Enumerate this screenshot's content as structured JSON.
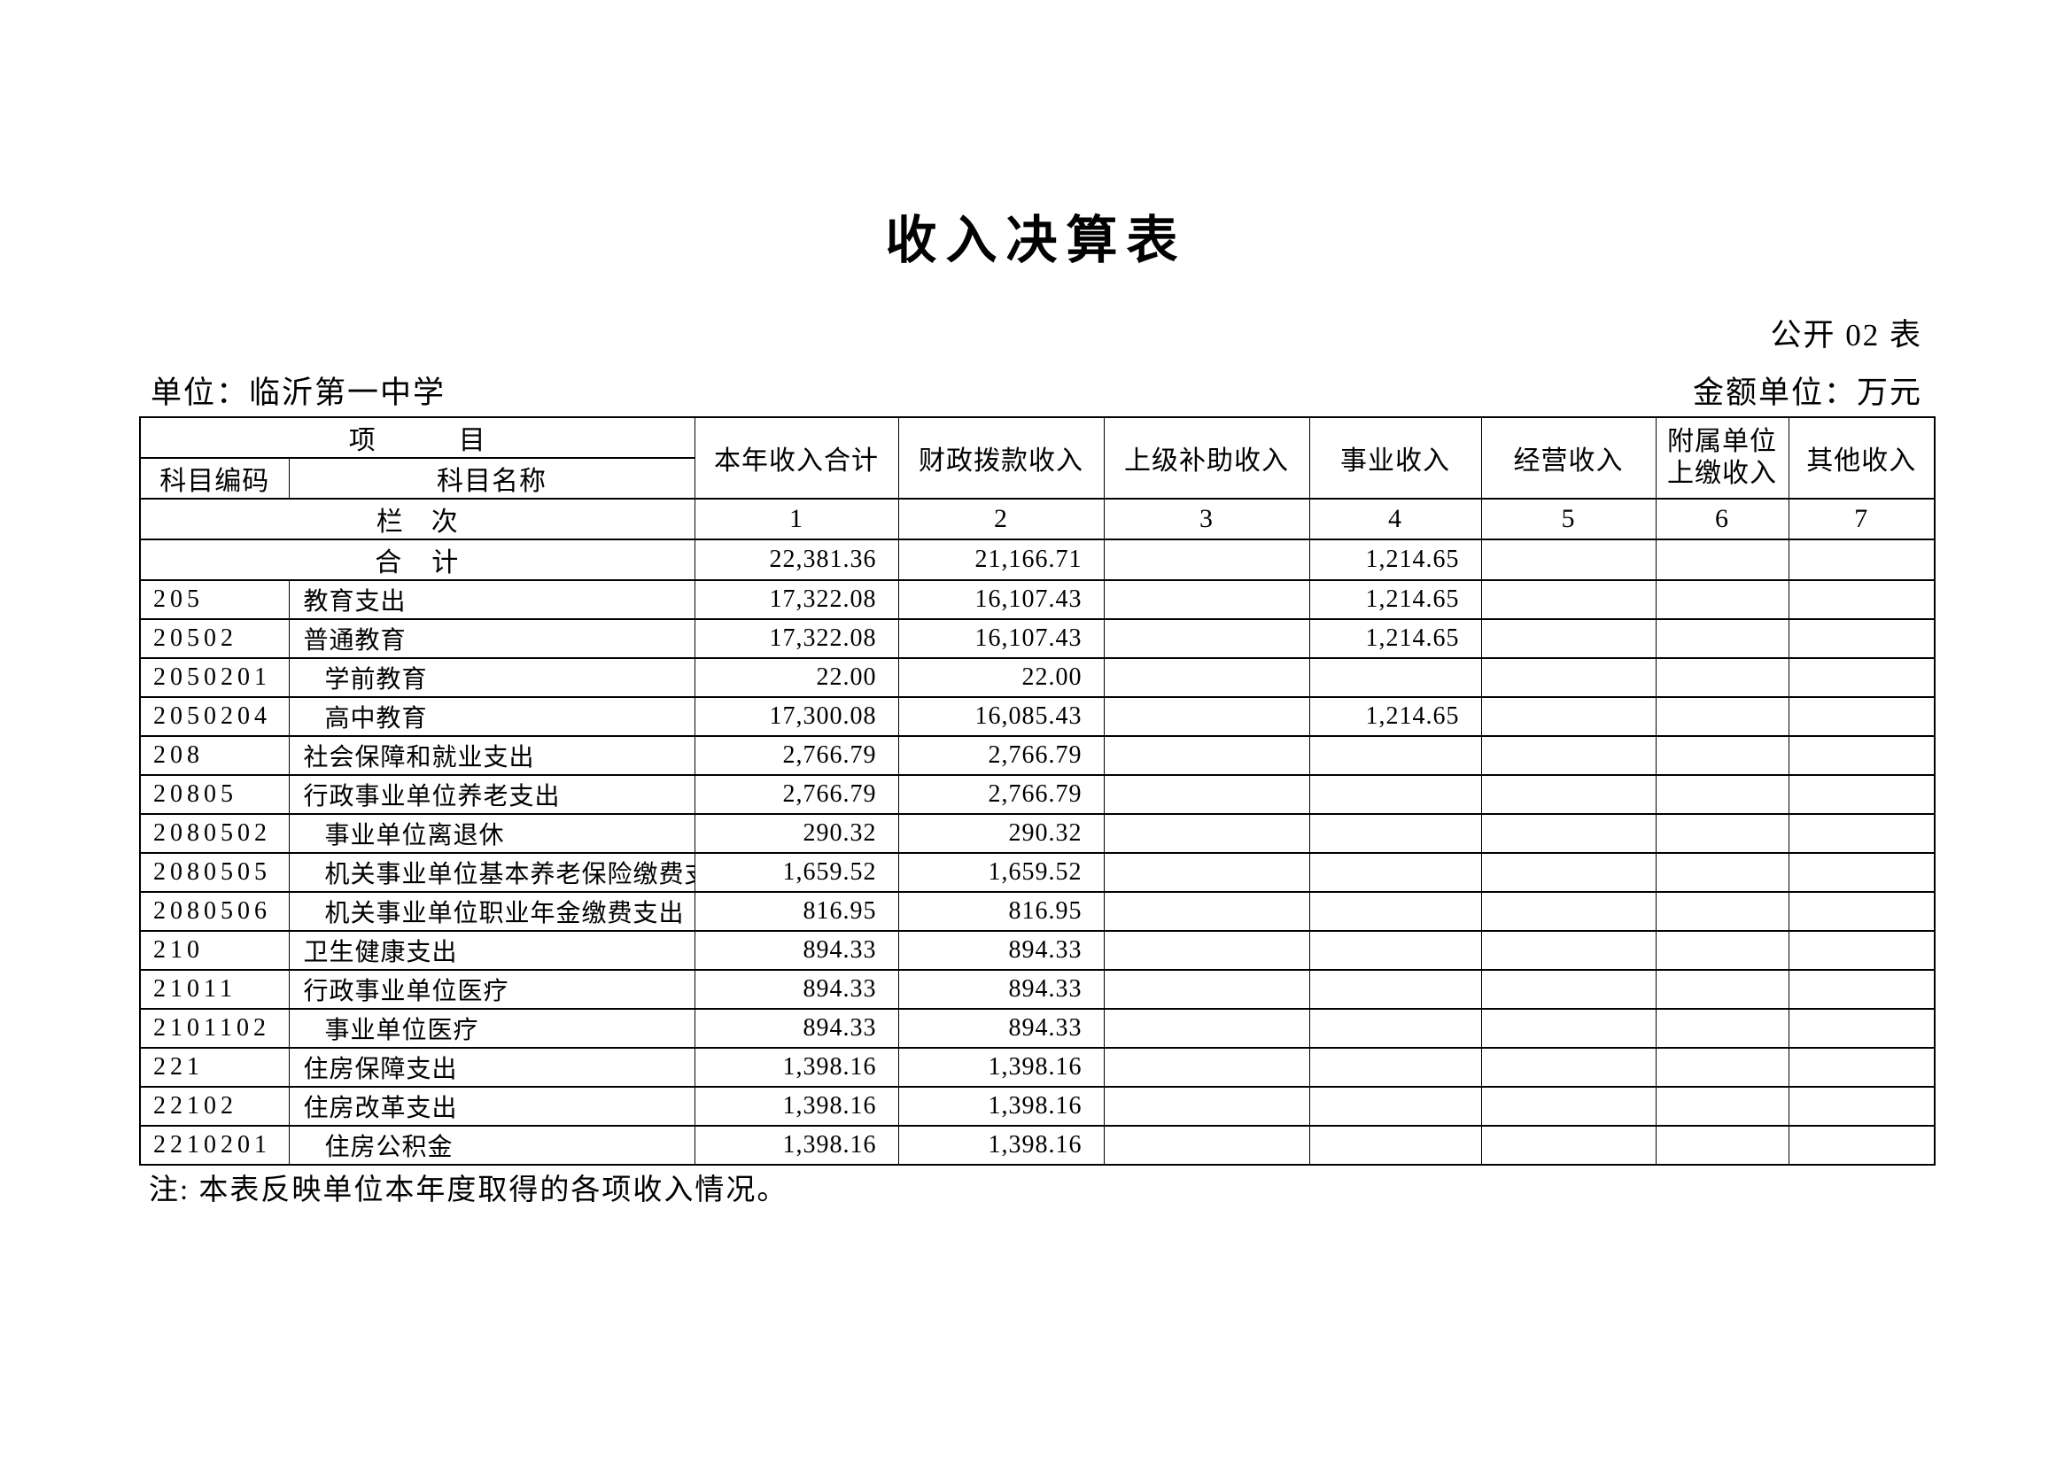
{
  "document": {
    "title": "收入决算表",
    "sheet_label": "公开 02 表",
    "org_label": "单位：",
    "org_name": "临沂第一中学",
    "amount_unit_label": "金额单位：",
    "amount_unit_value": "万元",
    "note": "注: 本表反映单位本年度取得的各项收入情况。"
  },
  "table": {
    "header": {
      "item_title": "项　　　目",
      "code_label": "科目编码",
      "name_label": "科目名称",
      "lanci_label": "栏　次"
    },
    "columns": [
      {
        "label": "本年收入合计",
        "index": "1"
      },
      {
        "label": "财政拨款收入",
        "index": "2"
      },
      {
        "label": "上级补助收入",
        "index": "3"
      },
      {
        "label": "事业收入",
        "index": "4"
      },
      {
        "label": "经营收入",
        "index": "5"
      },
      {
        "label": "附属单位",
        "label2": "上缴收入",
        "index": "6"
      },
      {
        "label": "其他收入",
        "index": "7"
      }
    ],
    "rows": [
      {
        "code": "",
        "name": "合　计",
        "indent": 0,
        "total": true,
        "values": [
          "22,381.36",
          "21,166.71",
          "",
          "1,214.65",
          "",
          "",
          ""
        ]
      },
      {
        "code": "205",
        "name": "教育支出",
        "indent": 0,
        "values": [
          "17,322.08",
          "16,107.43",
          "",
          "1,214.65",
          "",
          "",
          ""
        ]
      },
      {
        "code": "20502",
        "name": "普通教育",
        "indent": 0,
        "values": [
          "17,322.08",
          "16,107.43",
          "",
          "1,214.65",
          "",
          "",
          ""
        ]
      },
      {
        "code": "2050201",
        "name": "学前教育",
        "indent": 1,
        "values": [
          "22.00",
          "22.00",
          "",
          "",
          "",
          "",
          ""
        ]
      },
      {
        "code": "2050204",
        "name": "高中教育",
        "indent": 1,
        "values": [
          "17,300.08",
          "16,085.43",
          "",
          "1,214.65",
          "",
          "",
          ""
        ]
      },
      {
        "code": "208",
        "name": "社会保障和就业支出",
        "indent": 0,
        "values": [
          "2,766.79",
          "2,766.79",
          "",
          "",
          "",
          "",
          ""
        ]
      },
      {
        "code": "20805",
        "name": "行政事业单位养老支出",
        "indent": 0,
        "values": [
          "2,766.79",
          "2,766.79",
          "",
          "",
          "",
          "",
          ""
        ]
      },
      {
        "code": "2080502",
        "name": "事业单位离退休",
        "indent": 1,
        "values": [
          "290.32",
          "290.32",
          "",
          "",
          "",
          "",
          ""
        ]
      },
      {
        "code": "2080505",
        "name": "机关事业单位基本养老保险缴费支出",
        "indent": 1,
        "values": [
          "1,659.52",
          "1,659.52",
          "",
          "",
          "",
          "",
          ""
        ]
      },
      {
        "code": "2080506",
        "name": "机关事业单位职业年金缴费支出",
        "indent": 1,
        "values": [
          "816.95",
          "816.95",
          "",
          "",
          "",
          "",
          ""
        ]
      },
      {
        "code": "210",
        "name": "卫生健康支出",
        "indent": 0,
        "values": [
          "894.33",
          "894.33",
          "",
          "",
          "",
          "",
          ""
        ]
      },
      {
        "code": "21011",
        "name": "行政事业单位医疗",
        "indent": 0,
        "values": [
          "894.33",
          "894.33",
          "",
          "",
          "",
          "",
          ""
        ]
      },
      {
        "code": "2101102",
        "name": "事业单位医疗",
        "indent": 1,
        "values": [
          "894.33",
          "894.33",
          "",
          "",
          "",
          "",
          ""
        ]
      },
      {
        "code": "221",
        "name": "住房保障支出",
        "indent": 0,
        "values": [
          "1,398.16",
          "1,398.16",
          "",
          "",
          "",
          "",
          ""
        ]
      },
      {
        "code": "22102",
        "name": "住房改革支出",
        "indent": 0,
        "values": [
          "1,398.16",
          "1,398.16",
          "",
          "",
          "",
          "",
          ""
        ]
      },
      {
        "code": "2210201",
        "name": "住房公积金",
        "indent": 1,
        "values": [
          "1,398.16",
          "1,398.16",
          "",
          "",
          "",
          "",
          ""
        ]
      }
    ]
  }
}
